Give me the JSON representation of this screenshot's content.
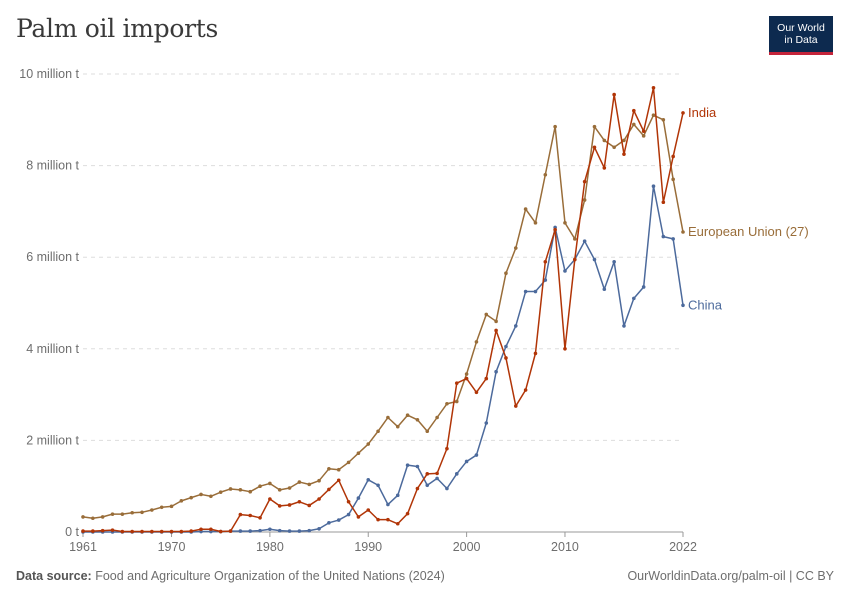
{
  "header": {
    "title": "Palm oil imports",
    "logo_line1": "Our World",
    "logo_line2": "in Data"
  },
  "footer": {
    "source_label": "Data source:",
    "source_text": "Food and Agriculture Organization of the United Nations (2024)",
    "url_text": "OurWorldinData.org/palm-oil | CC BY"
  },
  "colors": {
    "india": "#b13507",
    "eu": "#996d39",
    "china": "#4c6a9c",
    "grid": "#dddddd",
    "axis": "#6e6e6e"
  },
  "chart_data": {
    "type": "line",
    "title": "Palm oil imports",
    "ylim": [
      0,
      10000000
    ],
    "xlim": [
      1961,
      2022
    ],
    "yticks": [
      {
        "value": 0,
        "label": "0 t"
      },
      {
        "value": 2000000,
        "label": "2 million t"
      },
      {
        "value": 4000000,
        "label": "4 million t"
      },
      {
        "value": 6000000,
        "label": "6 million t"
      },
      {
        "value": 8000000,
        "label": "8 million t"
      },
      {
        "value": 10000000,
        "label": "10 million t"
      }
    ],
    "xticks": [
      {
        "value": 1961,
        "label": "1961"
      },
      {
        "value": 1970,
        "label": "1970"
      },
      {
        "value": 1980,
        "label": "1980"
      },
      {
        "value": 1990,
        "label": "1990"
      },
      {
        "value": 2000,
        "label": "2000"
      },
      {
        "value": 2010,
        "label": "2010"
      },
      {
        "value": 2022,
        "label": "2022"
      }
    ],
    "grid": true,
    "legend": "inline-right",
    "x": [
      1961,
      1962,
      1963,
      1964,
      1965,
      1966,
      1967,
      1968,
      1969,
      1970,
      1971,
      1972,
      1973,
      1974,
      1975,
      1976,
      1977,
      1978,
      1979,
      1980,
      1981,
      1982,
      1983,
      1984,
      1985,
      1986,
      1987,
      1988,
      1989,
      1990,
      1991,
      1992,
      1993,
      1994,
      1995,
      1996,
      1997,
      1998,
      1999,
      2000,
      2001,
      2002,
      2003,
      2004,
      2005,
      2006,
      2007,
      2008,
      2009,
      2010,
      2011,
      2012,
      2013,
      2014,
      2015,
      2016,
      2017,
      2018,
      2019,
      2020,
      2021,
      2022
    ],
    "series": [
      {
        "name": "European Union (27)",
        "key": "eu",
        "values": [
          330000,
          300000,
          330000,
          390000,
          390000,
          420000,
          430000,
          480000,
          540000,
          560000,
          680000,
          750000,
          820000,
          780000,
          870000,
          940000,
          920000,
          880000,
          1000000,
          1060000,
          920000,
          960000,
          1090000,
          1040000,
          1120000,
          1380000,
          1360000,
          1520000,
          1720000,
          1920000,
          2200000,
          2500000,
          2300000,
          2550000,
          2450000,
          2200000,
          2500000,
          2800000,
          2850000,
          3450000,
          4150000,
          4750000,
          4600000,
          5650000,
          6200000,
          7050000,
          6750000,
          7800000,
          8850000,
          6750000,
          6400000,
          7250000,
          8850000,
          8550000,
          8400000,
          8550000,
          8900000,
          8650000,
          9100000,
          9000000,
          7700000,
          6550000
        ]
      },
      {
        "name": "India",
        "key": "india",
        "values": [
          20000,
          20000,
          30000,
          40000,
          10000,
          10000,
          10000,
          10000,
          10000,
          10000,
          10000,
          20000,
          60000,
          60000,
          10000,
          20000,
          380000,
          360000,
          310000,
          720000,
          570000,
          590000,
          660000,
          580000,
          720000,
          930000,
          1130000,
          660000,
          330000,
          480000,
          270000,
          270000,
          180000,
          400000,
          950000,
          1270000,
          1280000,
          1820000,
          3250000,
          3350000,
          3050000,
          3350000,
          4400000,
          3800000,
          2750000,
          3100000,
          3900000,
          5900000,
          6600000,
          4000000,
          5950000,
          7650000,
          8400000,
          7950000,
          9550000,
          8250000,
          9200000,
          8750000,
          9700000,
          7200000,
          8200000,
          9150000
        ]
      },
      {
        "name": "China",
        "key": "china",
        "values": [
          0,
          0,
          0,
          0,
          0,
          0,
          0,
          0,
          0,
          0,
          0,
          0,
          10000,
          10000,
          10000,
          20000,
          20000,
          20000,
          30000,
          60000,
          30000,
          20000,
          20000,
          30000,
          70000,
          200000,
          260000,
          380000,
          740000,
          1140000,
          1020000,
          600000,
          800000,
          1460000,
          1430000,
          1020000,
          1170000,
          950000,
          1270000,
          1540000,
          1680000,
          2380000,
          3500000,
          4050000,
          4500000,
          5250000,
          5250000,
          5500000,
          6650000,
          5700000,
          5950000,
          6350000,
          5950000,
          5300000,
          5900000,
          4500000,
          5100000,
          5350000,
          7550000,
          6450000,
          6400000,
          4950000
        ]
      }
    ]
  }
}
